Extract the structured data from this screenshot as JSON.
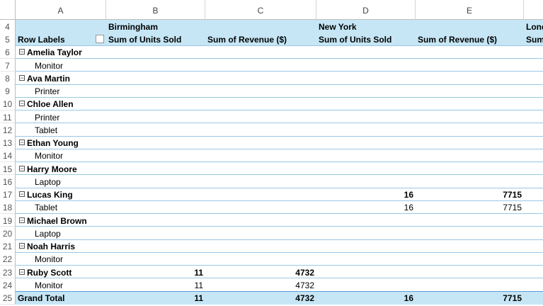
{
  "sheet": {
    "columns": [
      "A",
      "B",
      "C",
      "D",
      "E"
    ],
    "rows": [
      {
        "n": 4,
        "style": "header",
        "cells": {
          "B": "Birmingham",
          "D": "New York",
          "F": "Lond"
        }
      },
      {
        "n": 5,
        "style": "header",
        "cells": {
          "A": "Row Labels",
          "B": "Sum of Units Sold",
          "C": "Sum of Revenue ($)",
          "D": "Sum of Units Sold",
          "E": "Sum of Revenue ($)",
          "F": "Sum"
        }
      },
      {
        "n": 6,
        "style": "group",
        "cells": {
          "A": "Amelia Taylor"
        }
      },
      {
        "n": 7,
        "style": "item",
        "cells": {
          "A": "Monitor"
        }
      },
      {
        "n": 8,
        "style": "group",
        "cells": {
          "A": "Ava Martin"
        }
      },
      {
        "n": 9,
        "style": "item",
        "cells": {
          "A": "Printer"
        }
      },
      {
        "n": 10,
        "style": "group",
        "cells": {
          "A": "Chloe Allen"
        }
      },
      {
        "n": 11,
        "style": "item",
        "cells": {
          "A": "Printer"
        }
      },
      {
        "n": 12,
        "style": "item",
        "cells": {
          "A": "Tablet"
        }
      },
      {
        "n": 13,
        "style": "group",
        "cells": {
          "A": "Ethan Young"
        }
      },
      {
        "n": 14,
        "style": "item",
        "cells": {
          "A": "Monitor"
        }
      },
      {
        "n": 15,
        "style": "group",
        "cells": {
          "A": "Harry Moore"
        }
      },
      {
        "n": 16,
        "style": "item",
        "cells": {
          "A": "Laptop"
        }
      },
      {
        "n": 17,
        "style": "group",
        "cells": {
          "A": "Lucas King",
          "D": 16,
          "E": 7715
        }
      },
      {
        "n": 18,
        "style": "item",
        "cells": {
          "A": "Tablet",
          "D": 16,
          "E": 7715
        }
      },
      {
        "n": 19,
        "style": "group",
        "cells": {
          "A": "Michael Brown"
        }
      },
      {
        "n": 20,
        "style": "item",
        "cells": {
          "A": "Laptop"
        }
      },
      {
        "n": 21,
        "style": "group",
        "cells": {
          "A": "Noah Harris"
        }
      },
      {
        "n": 22,
        "style": "item",
        "cells": {
          "A": "Monitor"
        }
      },
      {
        "n": 23,
        "style": "group",
        "cells": {
          "A": "Ruby Scott",
          "B": 11,
          "C": 4732
        }
      },
      {
        "n": 24,
        "style": "item",
        "cells": {
          "A": "Monitor",
          "B": 11,
          "C": 4732
        }
      },
      {
        "n": 25,
        "style": "total",
        "cells": {
          "A": "Grand Total",
          "B": 11,
          "C": 4732,
          "D": 16,
          "E": 7715
        }
      }
    ]
  }
}
